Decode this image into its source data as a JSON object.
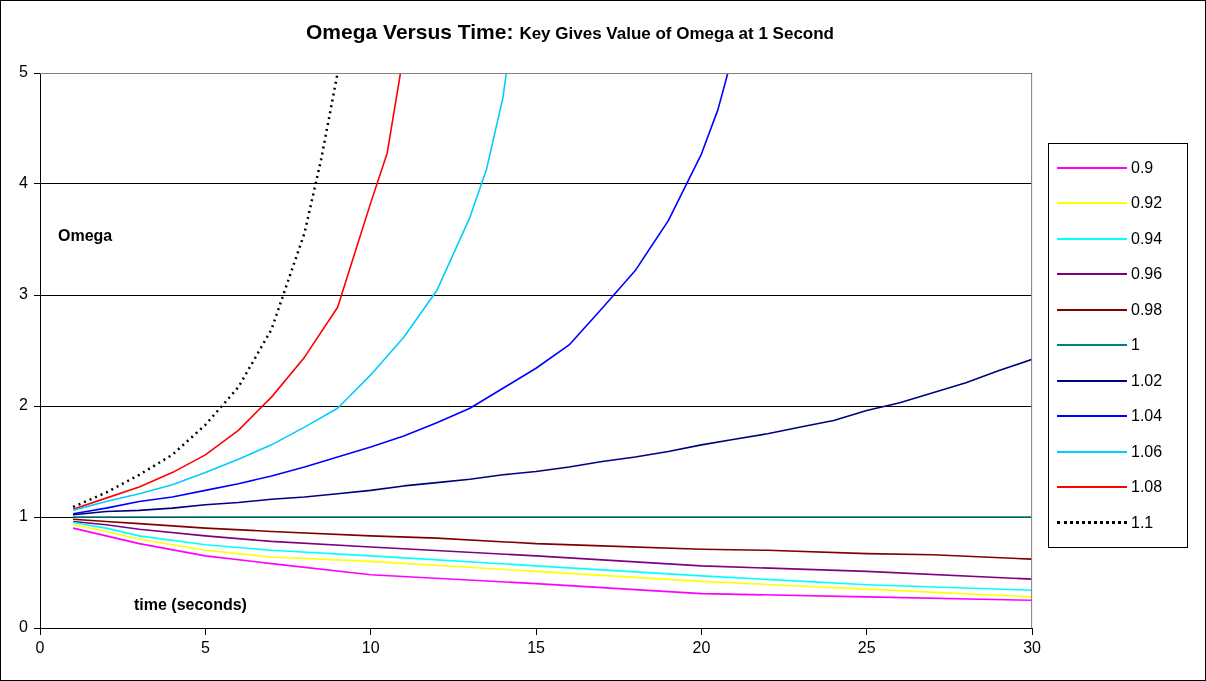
{
  "chart_data": {
    "type": "line",
    "title": "Omega Versus Time:",
    "subtitle": "Key Gives Value of Omega at 1 Second",
    "xlabel": "time (seconds)",
    "ylabel": "Omega",
    "xlim": [
      0,
      30
    ],
    "xticks": [
      0,
      5,
      10,
      15,
      20,
      25,
      30
    ],
    "ylim": [
      0,
      5
    ],
    "yticks": [
      0,
      1,
      2,
      3,
      4,
      5
    ],
    "grid": "y",
    "legend": "right",
    "marker": "none",
    "series": [
      {
        "name": "0.9",
        "color": "#ff00ff",
        "x": [
          1,
          2,
          3,
          5,
          7,
          10,
          15,
          20,
          25,
          30
        ],
        "values": [
          0.9,
          0.83,
          0.76,
          0.65,
          0.58,
          0.48,
          0.4,
          0.31,
          0.28,
          0.25
        ]
      },
      {
        "name": "0.92",
        "color": "#ffff00",
        "x": [
          1,
          2,
          3,
          5,
          7,
          10,
          15,
          20,
          25,
          30
        ],
        "values": [
          0.93,
          0.87,
          0.8,
          0.7,
          0.64,
          0.6,
          0.51,
          0.42,
          0.35,
          0.28
        ]
      },
      {
        "name": "0.94",
        "color": "#00ffff",
        "x": [
          1,
          2,
          3,
          5,
          7,
          10,
          15,
          20,
          25,
          30
        ],
        "values": [
          0.95,
          0.9,
          0.83,
          0.75,
          0.7,
          0.65,
          0.56,
          0.47,
          0.39,
          0.34
        ]
      },
      {
        "name": "0.96",
        "color": "#800080",
        "x": [
          1,
          2,
          3,
          5,
          7,
          10,
          15,
          20,
          25,
          30
        ],
        "values": [
          0.96,
          0.93,
          0.89,
          0.83,
          0.78,
          0.73,
          0.65,
          0.56,
          0.51,
          0.44
        ]
      },
      {
        "name": "0.98",
        "color": "#800000",
        "x": [
          1,
          2,
          3,
          5,
          7,
          10,
          12,
          15,
          17,
          20,
          22,
          25,
          27,
          30
        ],
        "values": [
          0.98,
          0.96,
          0.94,
          0.9,
          0.87,
          0.83,
          0.81,
          0.76,
          0.74,
          0.71,
          0.7,
          0.67,
          0.66,
          0.62
        ]
      },
      {
        "name": "1",
        "color": "#008080",
        "x": [
          1,
          30
        ],
        "values": [
          1,
          1
        ]
      },
      {
        "name": "1.02",
        "color": "#000080",
        "x": [
          1,
          2,
          3,
          4,
          5,
          6,
          7,
          8,
          9,
          10,
          11,
          12,
          13,
          14,
          15,
          16,
          17,
          18,
          19,
          20,
          21,
          22,
          23,
          24,
          25,
          26,
          27,
          28,
          29,
          30
        ],
        "values": [
          1.02,
          1.05,
          1.06,
          1.08,
          1.11,
          1.13,
          1.16,
          1.18,
          1.21,
          1.24,
          1.28,
          1.31,
          1.34,
          1.38,
          1.41,
          1.45,
          1.5,
          1.54,
          1.59,
          1.65,
          1.7,
          1.75,
          1.81,
          1.87,
          1.96,
          2.03,
          2.12,
          2.21,
          2.32,
          2.42
        ]
      },
      {
        "name": "1.04",
        "color": "#0000ff",
        "x": [
          1,
          2,
          3,
          4,
          5,
          6,
          7,
          8,
          9,
          10,
          11,
          12,
          13,
          14,
          15,
          16,
          17,
          18,
          19,
          20,
          20.5,
          20.8
        ],
        "values": [
          1.03,
          1.08,
          1.14,
          1.18,
          1.24,
          1.3,
          1.37,
          1.45,
          1.54,
          1.63,
          1.73,
          1.85,
          1.98,
          2.16,
          2.34,
          2.55,
          2.88,
          3.22,
          3.67,
          4.27,
          4.67,
          5
        ]
      },
      {
        "name": "1.06",
        "color": "#00ccff",
        "x": [
          1,
          2,
          3,
          4,
          5,
          6,
          7,
          8,
          9,
          10,
          11,
          12,
          13,
          13.5,
          14,
          14.1
        ],
        "values": [
          1.06,
          1.14,
          1.21,
          1.29,
          1.4,
          1.52,
          1.65,
          1.81,
          1.98,
          2.28,
          2.62,
          3.04,
          3.7,
          4.13,
          4.78,
          5
        ]
      },
      {
        "name": "1.08",
        "color": "#ff0000",
        "x": [
          1,
          2,
          3,
          4,
          5,
          6,
          7,
          8,
          9,
          10,
          10.5,
          10.9
        ],
        "values": [
          1.07,
          1.17,
          1.27,
          1.4,
          1.56,
          1.78,
          2.08,
          2.44,
          2.89,
          3.83,
          4.28,
          5
        ]
      },
      {
        "name": "1.1",
        "color": "#000000",
        "line_style": "dotted",
        "x": [
          1,
          2,
          3,
          4,
          5,
          6,
          7,
          8,
          8.5,
          9
        ],
        "values": [
          1.09,
          1.22,
          1.38,
          1.56,
          1.83,
          2.17,
          2.69,
          3.56,
          4.22,
          5
        ]
      }
    ]
  }
}
